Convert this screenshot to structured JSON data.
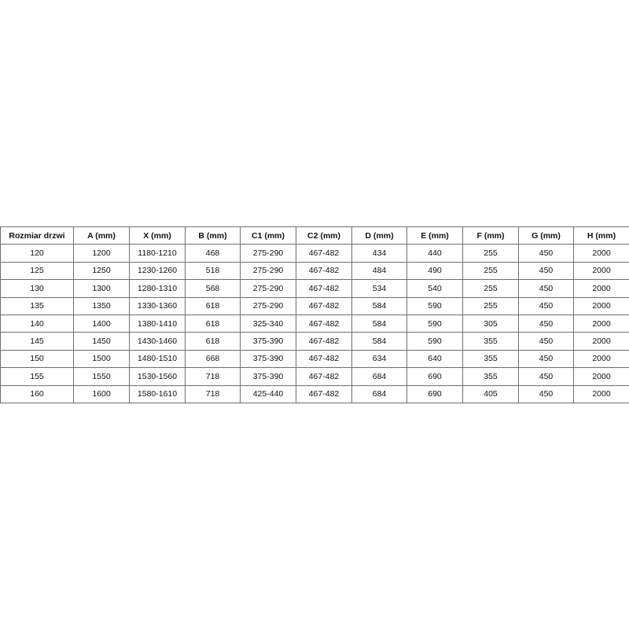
{
  "table": {
    "headers": [
      "Rozmiar drzwi",
      "A (mm)",
      "X (mm)",
      "B (mm)",
      "C1 (mm)",
      "C2 (mm)",
      "D (mm)",
      "E (mm)",
      "F (mm)",
      "G (mm)",
      "H (mm)"
    ],
    "rows": [
      [
        "120",
        "1200",
        "1180-1210",
        "468",
        "275-290",
        "467-482",
        "434",
        "440",
        "255",
        "450",
        "2000"
      ],
      [
        "125",
        "1250",
        "1230-1260",
        "518",
        "275-290",
        "467-482",
        "484",
        "490",
        "255",
        "450",
        "2000"
      ],
      [
        "130",
        "1300",
        "1280-1310",
        "568",
        "275-290",
        "467-482",
        "534",
        "540",
        "255",
        "450",
        "2000"
      ],
      [
        "135",
        "1350",
        "1330-1360",
        "618",
        "275-290",
        "467-482",
        "584",
        "590",
        "255",
        "450",
        "2000"
      ],
      [
        "140",
        "1400",
        "1380-1410",
        "618",
        "325-340",
        "467-482",
        "584",
        "590",
        "305",
        "450",
        "2000"
      ],
      [
        "145",
        "1450",
        "1430-1460",
        "618",
        "375-390",
        "467-482",
        "584",
        "590",
        "355",
        "450",
        "2000"
      ],
      [
        "150",
        "1500",
        "1480-1510",
        "668",
        "375-390",
        "467-482",
        "634",
        "640",
        "355",
        "450",
        "2000"
      ],
      [
        "155",
        "1550",
        "1530-1560",
        "718",
        "375-390",
        "467-482",
        "684",
        "690",
        "355",
        "450",
        "2000"
      ],
      [
        "160",
        "1600",
        "1580-1610",
        "718",
        "425-440",
        "467-482",
        "684",
        "690",
        "405",
        "450",
        "2000"
      ]
    ]
  }
}
